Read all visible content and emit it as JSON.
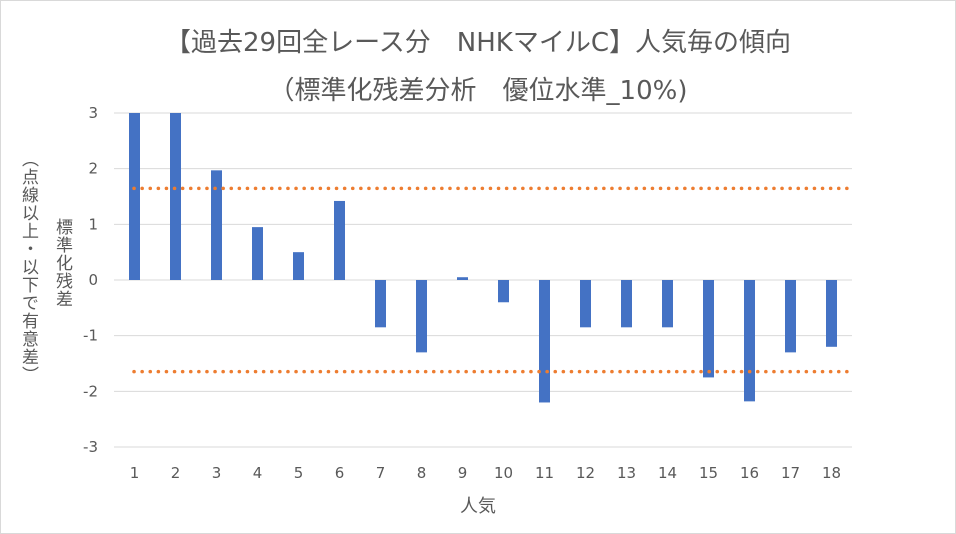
{
  "title_line1": "【過去29回全レース分　NHKマイルC】人気毎の傾向",
  "title_line2": "（標準化残差分析　優位水準_10%)",
  "ylabel_main": "標準化残差",
  "ylabel_sub": "（点線以上・以下で有意差）",
  "xlabel": "人気",
  "colors": {
    "bar": "#4472c4",
    "threshold": "#ed7d31",
    "grid": "#d9d9d9",
    "text": "#595959"
  },
  "chart_data": {
    "type": "bar",
    "title": "【過去29回全レース分　NHKマイルC】人気毎の傾向",
    "subtitle": "（標準化残差分析　優位水準_10%)",
    "xlabel": "人気",
    "ylabel": "標準化残差",
    "categories": [
      "1",
      "2",
      "3",
      "4",
      "5",
      "6",
      "7",
      "8",
      "9",
      "10",
      "11",
      "12",
      "13",
      "14",
      "15",
      "16",
      "17",
      "18"
    ],
    "values": [
      3.0,
      3.0,
      1.97,
      0.95,
      0.5,
      1.42,
      -0.85,
      -1.3,
      0.05,
      -0.4,
      -2.2,
      -0.85,
      -0.85,
      -0.85,
      -1.75,
      -2.18,
      -1.3,
      -1.2
    ],
    "ylim": [
      -3,
      3
    ],
    "yticks": [
      3,
      2,
      1,
      0,
      -1,
      -2,
      -3
    ],
    "thresholds": [
      1.645,
      -1.645
    ],
    "grid": true,
    "legend": "none"
  }
}
